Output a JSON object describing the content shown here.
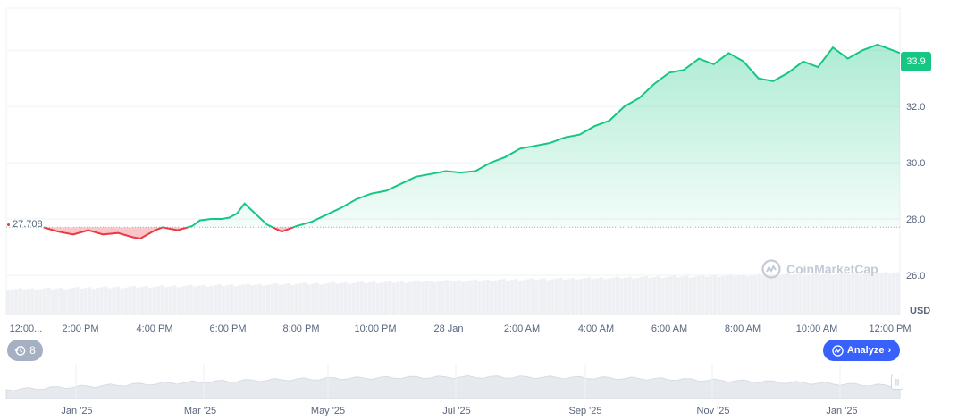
{
  "chart_data": {
    "type": "area",
    "currency_label": "USD",
    "current_price_label": "33.9",
    "reference_price_label": "27.708",
    "reference_price": 27.708,
    "ylim": [
      24.6,
      35.5
    ],
    "y_ticks": [
      26.0,
      28.0,
      30.0,
      32.0
    ],
    "y_tick_labels": [
      "26.0",
      "28.0",
      "30.0",
      "32.0"
    ],
    "x_tick_labels": [
      "12:00...",
      "2:00 PM",
      "4:00 PM",
      "6:00 PM",
      "8:00 PM",
      "10:00 PM",
      "28 Jan",
      "2:00 AM",
      "4:00 AM",
      "6:00 AM",
      "8:00 AM",
      "10:00 AM",
      "12:00 PM"
    ],
    "x_hours": [
      0,
      24
    ],
    "series": [
      {
        "hours": [
          1,
          1.4,
          1.8,
          2.2,
          2.6,
          3.0,
          3.4,
          3.6,
          3.8,
          4.0,
          4.2,
          4.6,
          5.0,
          5.2,
          5.5,
          5.8,
          6.0,
          6.2,
          6.4,
          6.6,
          7.0,
          7.4,
          7.8,
          8.2,
          8.6,
          9.0,
          9.4,
          9.8,
          10.2,
          10.6,
          11.0,
          11.4,
          11.8,
          12.2,
          12.6,
          13.0,
          13.4,
          13.8,
          14.2,
          14.6,
          15.0,
          15.4,
          15.8,
          16.2,
          16.6,
          17.0,
          17.4,
          17.8,
          18.2,
          18.6,
          19.0,
          19.4,
          19.8,
          20.2,
          20.6,
          21.0,
          21.4,
          21.8,
          22.2,
          22.6,
          23.0,
          23.4,
          24.0
        ],
        "prices": [
          27.7,
          27.55,
          27.45,
          27.6,
          27.45,
          27.5,
          27.35,
          27.3,
          27.45,
          27.6,
          27.7,
          27.6,
          27.75,
          27.95,
          28.0,
          28.0,
          28.05,
          28.2,
          28.55,
          28.3,
          27.8,
          27.55,
          27.75,
          27.9,
          28.15,
          28.4,
          28.7,
          28.9,
          29.0,
          29.25,
          29.5,
          29.6,
          29.7,
          29.65,
          29.7,
          30.0,
          30.2,
          30.5,
          30.6,
          30.7,
          30.9,
          31.0,
          31.3,
          31.5,
          32.0,
          32.3,
          32.8,
          33.2,
          33.3,
          33.7,
          33.5,
          33.9,
          33.6,
          33.0,
          32.9,
          33.2,
          33.6,
          33.4,
          34.1,
          33.7,
          34.0,
          34.2,
          33.9
        ],
        "color_up": "#16c784",
        "color_down": "#ea3943"
      }
    ],
    "navigator": {
      "labels": [
        "Jan '25",
        "Mar '25",
        "May '25",
        "Jul '25",
        "Sep '25",
        "Nov '25",
        "Jan '26"
      ]
    }
  },
  "history_badge": {
    "count": "8",
    "icon": "history-icon"
  },
  "analyze_button": {
    "label": "Analyze",
    "icon": "analyze-icon",
    "color": "#3861fb"
  },
  "watermark": {
    "text": "CoinMarketCap"
  }
}
